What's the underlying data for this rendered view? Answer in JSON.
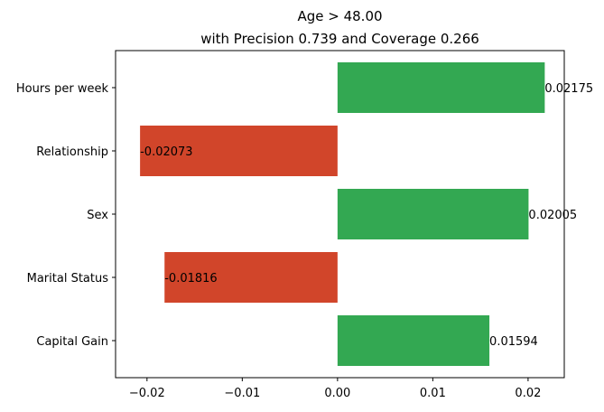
{
  "chart_data": {
    "type": "bar",
    "orientation": "horizontal",
    "title_line1": "Age > 48.00",
    "title_line2": "with Precision 0.739 and Coverage 0.266",
    "categories": [
      "Hours per week",
      "Relationship",
      "Sex",
      "Marital Status",
      "Capital Gain"
    ],
    "values": [
      0.02175,
      -0.02073,
      0.02005,
      -0.01816,
      0.01594
    ],
    "value_labels": [
      "0.02175",
      "-0.02073",
      "0.02005",
      "-0.01816",
      "0.01594"
    ],
    "xlim": [
      -0.0233,
      0.0238
    ],
    "xticks": [
      -0.02,
      -0.01,
      0.0,
      0.01,
      0.02
    ],
    "xtick_labels": [
      "−0.02",
      "−0.01",
      "0.00",
      "0.01",
      "0.02"
    ],
    "xlabel": "",
    "ylabel": "",
    "grid": false,
    "colors": {
      "positive": "#33a852",
      "negative": "#d1452a"
    }
  }
}
